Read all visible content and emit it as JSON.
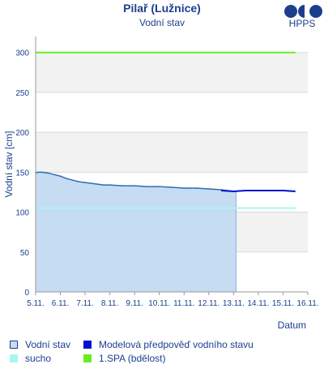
{
  "header": {
    "title": "Pilař (Lužnice)",
    "subtitle": "Vodní stav",
    "logo_text": "HPPS"
  },
  "colors": {
    "observed_fill": "#c6dcf2",
    "observed_line": "#2f6db3",
    "forecast_line": "#0011cc",
    "drought": "#a9f5f2",
    "spa1": "#66ee22",
    "text": "#1b3f8f",
    "band": "#f2f2f2",
    "grid": "#d9d9d9"
  },
  "legend": [
    {
      "label": "Vodní stav",
      "color": "#c6dcf2",
      "border": "#1b3f8f",
      "icon": "square-outline-icon"
    },
    {
      "label": "Modelová předpověď vodního stavu",
      "color": "#0011cc",
      "icon": "square-solid-icon"
    },
    {
      "label": "sucho",
      "color": "#a9f5f2",
      "icon": "square-solid-icon"
    },
    {
      "label": "1.SPA (bdělost)",
      "color": "#66ee22",
      "icon": "square-solid-icon"
    }
  ],
  "chart_data": {
    "type": "area",
    "title": "Pilař (Lužnice)",
    "subtitle": "Vodní stav",
    "xlabel": "Datum",
    "ylabel": "Vodní stav [cm]",
    "ylim": [
      0,
      320
    ],
    "xlim": [
      0,
      11
    ],
    "yticks": [
      0,
      50,
      100,
      150,
      200,
      250,
      300
    ],
    "xtick_labels": [
      "5.11.",
      "6.11.",
      "7.11.",
      "8.11.",
      "9.11.",
      "10.11.",
      "11.11.",
      "12.11.",
      "13.11.",
      "14.11.",
      "15.11.",
      "16.11."
    ],
    "grid": true,
    "legend_position": "bottom",
    "series": [
      {
        "name": "Vodní stav",
        "kind": "area",
        "x": [
          0.0,
          0.1,
          0.25,
          0.5,
          0.75,
          1.0,
          1.25,
          1.5,
          1.75,
          2.0,
          2.25,
          2.5,
          2.75,
          3.0,
          3.5,
          4.0,
          4.5,
          5.0,
          5.5,
          6.0,
          6.5,
          7.0,
          7.5,
          8.0,
          8.1
        ],
        "values": [
          149,
          150,
          150,
          149,
          147,
          145,
          142,
          140,
          138,
          137,
          136,
          135,
          134,
          134,
          133,
          133,
          132,
          132,
          131,
          130,
          130,
          129,
          128,
          126,
          126
        ]
      },
      {
        "name": "Modelová předpověď vodního stavu",
        "kind": "line",
        "x": [
          7.5,
          8.0,
          8.5,
          9.0,
          9.5,
          10.0,
          10.5
        ],
        "values": [
          127,
          126,
          127,
          127,
          127,
          127,
          126
        ]
      },
      {
        "name": "sucho",
        "kind": "hline",
        "x": [
          0,
          10.5
        ],
        "values": [
          105,
          105
        ]
      },
      {
        "name": "1.SPA (bdělost)",
        "kind": "hline",
        "x": [
          0,
          10.5
        ],
        "values": [
          300,
          300
        ]
      }
    ]
  }
}
